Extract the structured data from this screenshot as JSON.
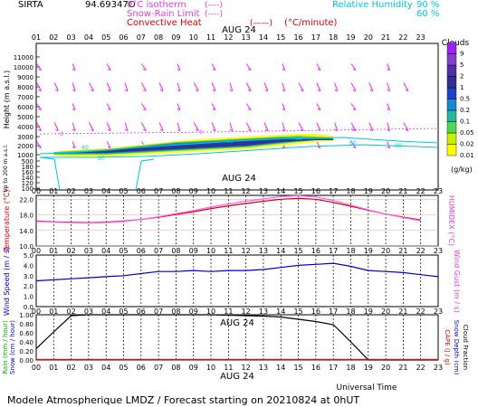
{
  "header": {
    "station": "SIRTA",
    "code": "94.69347O",
    "legend": [
      {
        "label": "0°C isotherm",
        "sample": "(----)",
        "color": "#e040e0"
      },
      {
        "label": "Snow-Rain Limit",
        "sample": "(----)",
        "color": "#e040e0"
      },
      {
        "label": "Convective Heat",
        "sample": "(——)",
        "unit": "(°C/minute)",
        "color": "#e00000"
      }
    ],
    "rh_label": "Relative Humidity",
    "rh_levels": [
      "90 %",
      "60 %"
    ],
    "rh_color": "#00c8d8"
  },
  "date_label": "AUG 24",
  "hours": [
    "01",
    "02",
    "03",
    "04",
    "05",
    "06",
    "07",
    "08",
    "09",
    "10",
    "11",
    "12",
    "13",
    "14",
    "15",
    "16",
    "17",
    "18",
    "19",
    "20",
    "21",
    "22",
    "23"
  ],
  "hours_bottom": [
    "00",
    "01",
    "02",
    "03",
    "04",
    "05",
    "06",
    "07",
    "08",
    "09",
    "10",
    "11",
    "12",
    "13",
    "14",
    "15",
    "16",
    "17",
    "18",
    "19",
    "20",
    "21",
    "22",
    "23"
  ],
  "footer": {
    "title": "Modele Atmospherique LMDZ / Forecast starting on 20210824 at 0hUT",
    "time_axis": "Universal Time"
  },
  "chart_data": [
    {
      "type": "heatmap",
      "name": "clouds",
      "ylabel": "Height (m a.s.l.)",
      "ylabel_lower": "Up to 200 m a.s.l.",
      "yticks": [
        "11000",
        "10000",
        "9000",
        "8000",
        "7000",
        "6000",
        "5000",
        "4000",
        "3000",
        "2000",
        "1000",
        "500",
        "180",
        "160",
        "140",
        "120",
        "100"
      ],
      "legend_title": "Clouds",
      "legend_unit": "(g/kg)",
      "color_scale": [
        {
          "label": "0.01",
          "color": "#ffff00"
        },
        {
          "label": "0.02",
          "color": "#c8f000"
        },
        {
          "label": "0.05",
          "color": "#50d850"
        },
        {
          "label": "0.1",
          "color": "#20b8a0"
        },
        {
          "label": "0.2",
          "color": "#1888d0"
        },
        {
          "label": "0.5",
          "color": "#2040c8"
        },
        {
          "label": "1",
          "color": "#303090"
        },
        {
          "label": "2",
          "color": "#5030a8"
        },
        {
          "label": "5",
          "color": "#8040c8"
        },
        {
          "label": "9",
          "color": "#a020f0"
        }
      ],
      "freezing_level_marks": [
        "0",
        "0",
        "0"
      ],
      "rh_contour_labels": [
        "60",
        "90",
        "60",
        "90",
        "60",
        "90"
      ]
    },
    {
      "type": "line",
      "name": "temperature",
      "ylabel": "Temperature (°C)",
      "ylabel_right": "HUMIDEX (°C)",
      "yticks": [
        "22.0",
        "18.0",
        "14.0",
        "10.0"
      ],
      "ylim": [
        10,
        23
      ],
      "x": [
        "01",
        "02",
        "03",
        "04",
        "05",
        "06",
        "07",
        "08",
        "09",
        "10",
        "11",
        "12",
        "13",
        "14",
        "15",
        "16",
        "17",
        "18",
        "19",
        "20",
        "21",
        "22",
        "23"
      ],
      "series": [
        {
          "color": "#e00000",
          "values": [
            16.4,
            16.2,
            16.1,
            16.0,
            16.1,
            16.4,
            16.8,
            17.4,
            18.1,
            18.8,
            19.6,
            20.3,
            20.9,
            21.5,
            22.0,
            22.2,
            22.0,
            21.2,
            20.2,
            19.2,
            18.2,
            17.4,
            16.7
          ]
        },
        {
          "color": "#ff60ff",
          "values": [
            16.3,
            16.1,
            16.0,
            15.9,
            16.0,
            16.3,
            16.8,
            17.5,
            18.3,
            19.1,
            20.0,
            20.8,
            21.5,
            22.1,
            22.7,
            22.9,
            22.6,
            21.7,
            20.5,
            19.3,
            18.2,
            17.3,
            16.5
          ]
        }
      ]
    },
    {
      "type": "line",
      "name": "wind",
      "ylabel": "Wind Speed (m / s)",
      "ylabel_right": "Wind Gust (m / s)",
      "yticks": [
        "5.0",
        "4.0",
        "3.0",
        "2.0",
        "1.0",
        "0.0"
      ],
      "ylim": [
        0,
        5
      ],
      "x": [
        "00",
        "01",
        "02",
        "03",
        "04",
        "05",
        "06",
        "07",
        "08",
        "09",
        "10",
        "11",
        "12",
        "13",
        "14",
        "15",
        "16",
        "17",
        "18",
        "19",
        "20",
        "21",
        "22",
        "23"
      ],
      "series": [
        {
          "color": "#0000d0",
          "values": [
            2.5,
            2.6,
            2.7,
            2.8,
            2.9,
            3.0,
            3.2,
            3.4,
            3.4,
            3.5,
            3.4,
            3.5,
            3.5,
            3.6,
            3.8,
            4.0,
            4.1,
            4.2,
            3.9,
            3.5,
            3.4,
            3.3,
            3.1,
            2.9
          ]
        }
      ]
    },
    {
      "type": "line",
      "name": "precip",
      "ylabel": "Rain (mm / hour)",
      "ylabel2": "Snow (cm / hour)",
      "ylabel_right": "CAPE (J / g)",
      "ylabel_right2": "Snow Depth (cm)",
      "ylabel_right3": "Cloud Fraction",
      "yticks": [
        "1.00",
        "0.80",
        "0.60",
        "0.40",
        "0.20",
        "0.00"
      ],
      "ylim": [
        0,
        1
      ],
      "x": [
        "00",
        "01",
        "02",
        "03",
        "04",
        "05",
        "06",
        "07",
        "08",
        "09",
        "10",
        "11",
        "12",
        "13",
        "14",
        "15",
        "16",
        "17",
        "18",
        "19",
        "20",
        "21",
        "22",
        "23"
      ],
      "series": [
        {
          "color": "#000000",
          "name": "Cloud Fraction",
          "values": [
            0.25,
            0.62,
            0.98,
            1.0,
            1.0,
            1.0,
            1.0,
            1.0,
            1.0,
            1.0,
            1.0,
            0.99,
            0.98,
            0.97,
            0.95,
            0.9,
            0.85,
            0.78,
            0.4,
            0.0,
            0.0,
            0.0,
            0.0,
            0.0
          ]
        },
        {
          "color": "#ff0000",
          "name": "CAPE",
          "values": [
            0.01,
            0.01,
            0.01,
            0.01,
            0.01,
            0.01,
            0.01,
            0.01,
            0.01,
            0.01,
            0.01,
            0.01,
            0.01,
            0.01,
            0.01,
            0.01,
            0.01,
            0.01,
            0.01,
            0.01,
            0.01,
            0.01,
            0.01,
            0.01
          ]
        }
      ]
    }
  ]
}
